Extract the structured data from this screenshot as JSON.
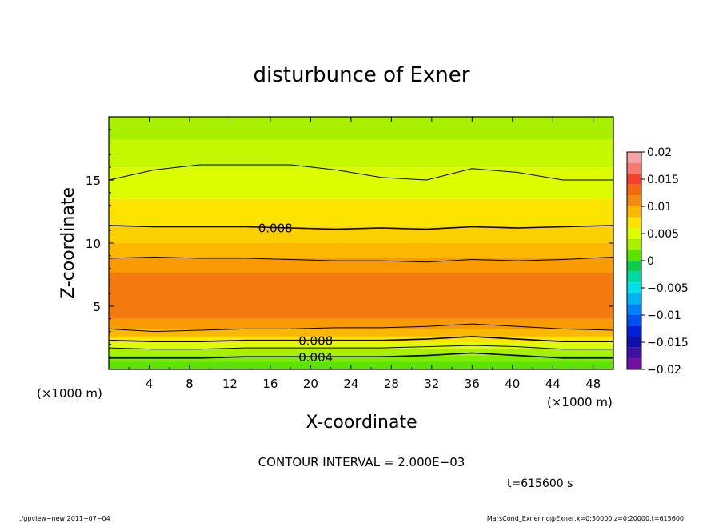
{
  "chart_data": {
    "type": "heatmap",
    "title": "disturbunce of Exner",
    "xlabel": "X-coordinate",
    "ylabel": "Z-coordinate",
    "x_unit_left": "(×1000 m)",
    "x_unit_right": "(×1000 m)",
    "xlim": [
      0,
      50
    ],
    "ylim": [
      0,
      20
    ],
    "x_ticks": [
      4,
      8,
      12,
      16,
      20,
      24,
      28,
      32,
      36,
      40,
      44,
      48
    ],
    "y_ticks": [
      5,
      10,
      15
    ],
    "colorbar": {
      "ticks": [
        0.02,
        0.015,
        0.01,
        0.005,
        0,
        -0.005,
        -0.01,
        -0.015,
        -0.02
      ],
      "tick_labels": [
        "0.02",
        "0.015",
        "0.01",
        "0.005",
        "0",
        "−0.005",
        "−0.01",
        "−0.015",
        "−0.02"
      ],
      "levels": [
        {
          "lo": 0.018,
          "hi": 0.02,
          "color": "#f4a4a4"
        },
        {
          "lo": 0.016,
          "hi": 0.018,
          "color": "#f47a72"
        },
        {
          "lo": 0.014,
          "hi": 0.016,
          "color": "#f4402e"
        },
        {
          "lo": 0.012,
          "hi": 0.014,
          "color": "#f46a10"
        },
        {
          "lo": 0.01,
          "hi": 0.012,
          "color": "#f48a10"
        },
        {
          "lo": 0.008,
          "hi": 0.01,
          "color": "#fcb800"
        },
        {
          "lo": 0.006,
          "hi": 0.008,
          "color": "#fce400"
        },
        {
          "lo": 0.004,
          "hi": 0.006,
          "color": "#dcfc00"
        },
        {
          "lo": 0.002,
          "hi": 0.004,
          "color": "#a8f000"
        },
        {
          "lo": 0.0,
          "hi": 0.002,
          "color": "#5ce400"
        },
        {
          "lo": -0.002,
          "hi": 0.0,
          "color": "#10cc4c"
        },
        {
          "lo": -0.004,
          "hi": -0.002,
          "color": "#00d8a4"
        },
        {
          "lo": -0.006,
          "hi": -0.004,
          "color": "#00e0e8"
        },
        {
          "lo": -0.008,
          "hi": -0.006,
          "color": "#00b4f4"
        },
        {
          "lo": -0.01,
          "hi": -0.008,
          "color": "#0080f8"
        },
        {
          "lo": -0.012,
          "hi": -0.01,
          "color": "#0050f0"
        },
        {
          "lo": -0.014,
          "hi": -0.012,
          "color": "#0020d8"
        },
        {
          "lo": -0.016,
          "hi": -0.014,
          "color": "#1010a8"
        },
        {
          "lo": -0.018,
          "hi": -0.016,
          "color": "#4010a0"
        },
        {
          "lo": -0.02,
          "hi": -0.018,
          "color": "#7010a0"
        }
      ]
    },
    "bands": [
      {
        "z_bottom": 0.0,
        "z_top": 0.6,
        "color": "#5ce400"
      },
      {
        "z_bottom": 0.6,
        "z_top": 1.1,
        "color": "#80ea00"
      },
      {
        "z_bottom": 1.1,
        "z_top": 1.6,
        "color": "#a8f000"
      },
      {
        "z_bottom": 1.6,
        "z_top": 2.1,
        "color": "#dcfc00"
      },
      {
        "z_bottom": 2.1,
        "z_top": 2.6,
        "color": "#fce400"
      },
      {
        "z_bottom": 2.6,
        "z_top": 3.2,
        "color": "#fcb800"
      },
      {
        "z_bottom": 3.2,
        "z_top": 4.0,
        "color": "#f89a00"
      },
      {
        "z_bottom": 4.0,
        "z_top": 7.6,
        "color": "#f47a10"
      },
      {
        "z_bottom": 7.6,
        "z_top": 8.8,
        "color": "#f89a00"
      },
      {
        "z_bottom": 8.8,
        "z_top": 10.0,
        "color": "#fcb800"
      },
      {
        "z_bottom": 10.0,
        "z_top": 11.3,
        "color": "#fcd000"
      },
      {
        "z_bottom": 11.3,
        "z_top": 13.5,
        "color": "#fce400"
      },
      {
        "z_bottom": 13.5,
        "z_top": 16.0,
        "color": "#dcfc00"
      },
      {
        "z_bottom": 16.0,
        "z_top": 18.2,
        "color": "#c4f800"
      },
      {
        "z_bottom": 18.2,
        "z_top": 20.0,
        "color": "#a8f000"
      }
    ],
    "contours": [
      {
        "level": 0.004,
        "z": [
          15.0,
          15.8,
          16.2,
          16.2,
          16.2,
          15.8,
          15.2,
          15.0,
          15.9,
          15.6,
          15.0,
          15.0
        ],
        "label": ""
      },
      {
        "level": 0.008,
        "z": [
          11.4,
          11.3,
          11.3,
          11.3,
          11.2,
          11.1,
          11.2,
          11.1,
          11.3,
          11.2,
          11.3,
          11.4
        ],
        "label": "0.008"
      },
      {
        "level": 0.01,
        "z": [
          8.8,
          8.9,
          8.8,
          8.8,
          8.7,
          8.6,
          8.6,
          8.5,
          8.7,
          8.6,
          8.7,
          8.9
        ],
        "label": ""
      },
      {
        "level": 0.01,
        "z": [
          3.2,
          3.0,
          3.1,
          3.2,
          3.2,
          3.3,
          3.3,
          3.4,
          3.6,
          3.4,
          3.2,
          3.1
        ],
        "label": ""
      },
      {
        "level": 0.008,
        "z": [
          2.3,
          2.2,
          2.2,
          2.3,
          2.3,
          2.3,
          2.3,
          2.4,
          2.6,
          2.4,
          2.2,
          2.2
        ],
        "label": "0.008"
      },
      {
        "level": 0.006,
        "z": [
          1.7,
          1.6,
          1.6,
          1.7,
          1.7,
          1.7,
          1.7,
          1.8,
          1.9,
          1.8,
          1.6,
          1.6
        ],
        "label": ""
      },
      {
        "level": 0.004,
        "z": [
          0.9,
          0.9,
          0.9,
          1.0,
          1.0,
          1.0,
          1.0,
          1.1,
          1.3,
          1.1,
          0.9,
          0.9
        ],
        "label": "0.004"
      }
    ],
    "contour_x": [
      0,
      4.5,
      9,
      13.5,
      18,
      22.5,
      27,
      31.5,
      36,
      40.5,
      45,
      50
    ]
  },
  "footer": {
    "contour_interval": "CONTOUR INTERVAL = 2.000E−03",
    "time": "t=615600 s",
    "left_note": "./gpview−new   2011−07−04",
    "right_note": "MarsCond_Exner.nc@Exner,x=0:50000,z=0:20000,t=615600"
  }
}
